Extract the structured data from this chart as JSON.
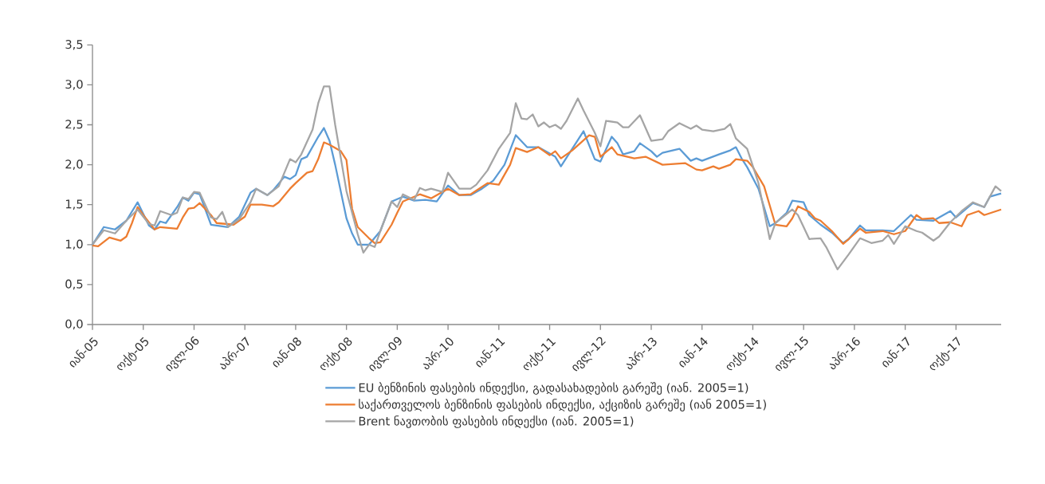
{
  "chart_data": {
    "type": "line",
    "xlim": [
      "2005-01",
      "2018-06"
    ],
    "xticks": [
      {
        "value": "2005-01",
        "label": "იან-05"
      },
      {
        "value": "2005-10",
        "label": "ოქტ-05"
      },
      {
        "value": "2006-07",
        "label": "ივლ-06"
      },
      {
        "value": "2007-04",
        "label": "აპრ-07"
      },
      {
        "value": "2008-01",
        "label": "იან-08"
      },
      {
        "value": "2008-10",
        "label": "ოქტ-08"
      },
      {
        "value": "2009-07",
        "label": "ივლ-09"
      },
      {
        "value": "2010-04",
        "label": "აპრ-10"
      },
      {
        "value": "2011-01",
        "label": "იან-11"
      },
      {
        "value": "2011-10",
        "label": "ოქტ-11"
      },
      {
        "value": "2012-07",
        "label": "ივლ-12"
      },
      {
        "value": "2013-04",
        "label": "აპრ-13"
      },
      {
        "value": "2014-01",
        "label": "იან-14"
      },
      {
        "value": "2014-10",
        "label": "ოქტ-14"
      },
      {
        "value": "2015-07",
        "label": "ივლ-15"
      },
      {
        "value": "2016-04",
        "label": "აპრ-16"
      },
      {
        "value": "2017-01",
        "label": "იან-17"
      },
      {
        "value": "2017-10",
        "label": "ოქტ-17"
      }
    ],
    "ylim": [
      0,
      3.5
    ],
    "yticks": [
      {
        "value": 0,
        "label": "0,0"
      },
      {
        "value": 0.5,
        "label": "0,5"
      },
      {
        "value": 1,
        "label": "1,0"
      },
      {
        "value": 1.5,
        "label": "1,5"
      },
      {
        "value": 2,
        "label": "2,0"
      },
      {
        "value": 2.5,
        "label": "2,5"
      },
      {
        "value": 3,
        "label": "3,0"
      },
      {
        "value": 3.5,
        "label": "3,5"
      }
    ],
    "legend": "bottom",
    "series": [
      {
        "name": "EU ბენზინის ფასების ინდექსი, გადასახადების გარეშე (იან. 2005=1)",
        "color": "#5b9bd5",
        "x": [
          "2005-01",
          "2005-03",
          "2005-05",
          "2005-07",
          "2005-09",
          "2005-11",
          "2005-12",
          "2006-01",
          "2006-02",
          "2006-04",
          "2006-05",
          "2006-06",
          "2006-07",
          "2006-08",
          "2006-10",
          "2006-11",
          "2007-01",
          "2007-03",
          "2007-05",
          "2007-06",
          "2007-08",
          "2007-09",
          "2007-11",
          "2007-12",
          "2008-01",
          "2008-02",
          "2008-03",
          "2008-05",
          "2008-06",
          "2008-07",
          "2008-08",
          "2008-10",
          "2008-11",
          "2008-12",
          "2009-02",
          "2009-04",
          "2009-06",
          "2009-08",
          "2009-10",
          "2009-12",
          "2010-02",
          "2010-04",
          "2010-06",
          "2010-08",
          "2010-10",
          "2010-12",
          "2011-02",
          "2011-04",
          "2011-06",
          "2011-08",
          "2011-11",
          "2011-12",
          "2012-02",
          "2012-04",
          "2012-06",
          "2012-07",
          "2012-09",
          "2012-10",
          "2012-11",
          "2013-01",
          "2013-02",
          "2013-04",
          "2013-05",
          "2013-06",
          "2013-09",
          "2013-11",
          "2013-12",
          "2014-01",
          "2014-04",
          "2014-06",
          "2014-07",
          "2014-08",
          "2014-09",
          "2014-11",
          "2015-01",
          "2015-02",
          "2015-04",
          "2015-05",
          "2015-07",
          "2015-08",
          "2015-10",
          "2015-12",
          "2016-02",
          "2016-03",
          "2016-05",
          "2016-06",
          "2016-09",
          "2016-11",
          "2017-02",
          "2017-03",
          "2017-06",
          "2017-09",
          "2017-10",
          "2018-01",
          "2018-03",
          "2018-04",
          "2018-06"
        ],
        "values": [
          1.0,
          1.22,
          1.19,
          1.3,
          1.53,
          1.24,
          1.19,
          1.29,
          1.27,
          1.47,
          1.59,
          1.55,
          1.65,
          1.63,
          1.25,
          1.24,
          1.22,
          1.35,
          1.65,
          1.7,
          1.62,
          1.68,
          1.85,
          1.82,
          1.87,
          2.07,
          2.1,
          2.35,
          2.46,
          2.3,
          2.0,
          1.33,
          1.14,
          1.0,
          1.0,
          1.17,
          1.54,
          1.6,
          1.55,
          1.56,
          1.54,
          1.74,
          1.62,
          1.62,
          1.7,
          1.8,
          2.0,
          2.37,
          2.22,
          2.22,
          2.1,
          1.98,
          2.2,
          2.42,
          2.07,
          2.04,
          2.35,
          2.27,
          2.13,
          2.17,
          2.27,
          2.17,
          2.1,
          2.15,
          2.2,
          2.05,
          2.08,
          2.05,
          2.13,
          2.18,
          2.22,
          2.08,
          1.97,
          1.7,
          1.23,
          1.27,
          1.4,
          1.55,
          1.53,
          1.37,
          1.25,
          1.15,
          1.02,
          1.07,
          1.24,
          1.18,
          1.18,
          1.17,
          1.37,
          1.31,
          1.3,
          1.42,
          1.34,
          1.52,
          1.47,
          1.6,
          1.64
        ]
      },
      {
        "name": "საქართველოს ბენზინის ფასების ინდექსი, აქციზის გარეშე (იან 2005=1)",
        "color": "#ed7d31",
        "x": [
          "2005-01",
          "2005-02",
          "2005-04",
          "2005-06",
          "2005-07",
          "2005-08",
          "2005-09",
          "2005-10",
          "2005-12",
          "2006-01",
          "2006-04",
          "2006-05",
          "2006-06",
          "2006-07",
          "2006-08",
          "2006-10",
          "2006-11",
          "2007-02",
          "2007-04",
          "2007-05",
          "2007-07",
          "2007-09",
          "2007-10",
          "2007-12",
          "2008-01",
          "2008-03",
          "2008-04",
          "2008-05",
          "2008-06",
          "2008-07",
          "2008-09",
          "2008-10",
          "2008-11",
          "2008-12",
          "2009-02",
          "2009-03",
          "2009-04",
          "2009-06",
          "2009-07",
          "2009-08",
          "2009-11",
          "2010-01",
          "2010-04",
          "2010-06",
          "2010-08",
          "2010-11",
          "2011-01",
          "2011-03",
          "2011-04",
          "2011-06",
          "2011-08",
          "2011-10",
          "2011-11",
          "2011-12",
          "2012-02",
          "2012-05",
          "2012-06",
          "2012-07",
          "2012-09",
          "2012-10",
          "2013-01",
          "2013-03",
          "2013-06",
          "2013-10",
          "2013-12",
          "2014-01",
          "2014-03",
          "2014-04",
          "2014-06",
          "2014-07",
          "2014-09",
          "2014-10",
          "2014-12",
          "2015-02",
          "2015-04",
          "2015-05",
          "2015-06",
          "2015-08",
          "2015-09",
          "2015-10",
          "2015-12",
          "2016-02",
          "2016-03",
          "2016-05",
          "2016-06",
          "2016-09",
          "2016-11",
          "2017-01",
          "2017-03",
          "2017-04",
          "2017-06",
          "2017-07",
          "2017-09",
          "2017-11",
          "2017-12",
          "2018-02",
          "2018-03",
          "2018-06"
        ],
        "values": [
          0.99,
          0.98,
          1.09,
          1.05,
          1.1,
          1.27,
          1.47,
          1.37,
          1.19,
          1.22,
          1.2,
          1.34,
          1.45,
          1.46,
          1.52,
          1.37,
          1.27,
          1.25,
          1.35,
          1.5,
          1.5,
          1.48,
          1.53,
          1.7,
          1.77,
          1.9,
          1.92,
          2.07,
          2.28,
          2.25,
          2.17,
          2.06,
          1.45,
          1.22,
          1.08,
          1.02,
          1.03,
          1.25,
          1.4,
          1.54,
          1.63,
          1.58,
          1.7,
          1.62,
          1.63,
          1.77,
          1.75,
          2.0,
          2.21,
          2.16,
          2.22,
          2.12,
          2.17,
          2.08,
          2.18,
          2.37,
          2.35,
          2.1,
          2.22,
          2.13,
          2.08,
          2.1,
          2.0,
          2.02,
          1.94,
          1.93,
          1.98,
          1.95,
          2.0,
          2.07,
          2.05,
          1.97,
          1.73,
          1.25,
          1.23,
          1.33,
          1.48,
          1.41,
          1.33,
          1.3,
          1.17,
          1.01,
          1.07,
          1.2,
          1.15,
          1.17,
          1.13,
          1.17,
          1.37,
          1.32,
          1.33,
          1.27,
          1.28,
          1.23,
          1.37,
          1.42,
          1.37,
          1.44
        ]
      },
      {
        "name": "Brent ნავთობის ფასების ინდექსი (იან. 2005=1)",
        "color": "#a5a5a5",
        "x": [
          "2005-01",
          "2005-03",
          "2005-05",
          "2005-07",
          "2005-09",
          "2005-11",
          "2005-12",
          "2006-01",
          "2006-03",
          "2006-04",
          "2006-05",
          "2006-06",
          "2006-07",
          "2006-08",
          "2006-10",
          "2006-11",
          "2006-12",
          "2007-01",
          "2007-03",
          "2007-05",
          "2007-06",
          "2007-08",
          "2007-10",
          "2007-12",
          "2008-01",
          "2008-02",
          "2008-04",
          "2008-05",
          "2008-06",
          "2008-07",
          "2008-08",
          "2008-10",
          "2008-12",
          "2009-01",
          "2009-02",
          "2009-03",
          "2009-04",
          "2009-06",
          "2009-07",
          "2009-08",
          "2009-10",
          "2009-11",
          "2009-12",
          "2010-01",
          "2010-03",
          "2010-04",
          "2010-06",
          "2010-08",
          "2010-09",
          "2010-11",
          "2011-01",
          "2011-03",
          "2011-04",
          "2011-05",
          "2011-06",
          "2011-07",
          "2011-08",
          "2011-09",
          "2011-10",
          "2011-11",
          "2011-12",
          "2012-01",
          "2012-03",
          "2012-04",
          "2012-06",
          "2012-07",
          "2012-08",
          "2012-10",
          "2012-11",
          "2012-12",
          "2013-02",
          "2013-04",
          "2013-06",
          "2013-07",
          "2013-09",
          "2013-11",
          "2013-12",
          "2014-01",
          "2014-03",
          "2014-05",
          "2014-06",
          "2014-07",
          "2014-09",
          "2014-11",
          "2015-01",
          "2015-02",
          "2015-05",
          "2015-06",
          "2015-08",
          "2015-10",
          "2015-11",
          "2016-01",
          "2016-03",
          "2016-05",
          "2016-07",
          "2016-09",
          "2016-10",
          "2016-11",
          "2017-01",
          "2017-03",
          "2017-04",
          "2017-06",
          "2017-07",
          "2017-09",
          "2017-11",
          "2018-01",
          "2018-03",
          "2018-05",
          "2018-06"
        ],
        "values": [
          1.0,
          1.18,
          1.14,
          1.3,
          1.44,
          1.26,
          1.24,
          1.42,
          1.37,
          1.4,
          1.59,
          1.57,
          1.66,
          1.65,
          1.34,
          1.32,
          1.41,
          1.22,
          1.32,
          1.53,
          1.7,
          1.62,
          1.73,
          2.07,
          2.03,
          2.13,
          2.44,
          2.77,
          2.98,
          2.98,
          2.5,
          1.67,
          1.13,
          0.9,
          1.0,
          0.97,
          1.17,
          1.54,
          1.47,
          1.63,
          1.56,
          1.71,
          1.68,
          1.7,
          1.66,
          1.9,
          1.7,
          1.7,
          1.75,
          1.93,
          2.2,
          2.4,
          2.77,
          2.58,
          2.57,
          2.63,
          2.48,
          2.53,
          2.47,
          2.5,
          2.45,
          2.55,
          2.83,
          2.68,
          2.4,
          2.23,
          2.55,
          2.53,
          2.47,
          2.47,
          2.62,
          2.3,
          2.32,
          2.42,
          2.52,
          2.45,
          2.49,
          2.44,
          2.42,
          2.45,
          2.51,
          2.33,
          2.2,
          1.77,
          1.07,
          1.27,
          1.44,
          1.37,
          1.07,
          1.08,
          0.97,
          0.69,
          0.88,
          1.08,
          1.02,
          1.05,
          1.12,
          1.01,
          1.23,
          1.17,
          1.15,
          1.05,
          1.1,
          1.28,
          1.42,
          1.53,
          1.47,
          1.73,
          1.67
        ]
      }
    ]
  }
}
